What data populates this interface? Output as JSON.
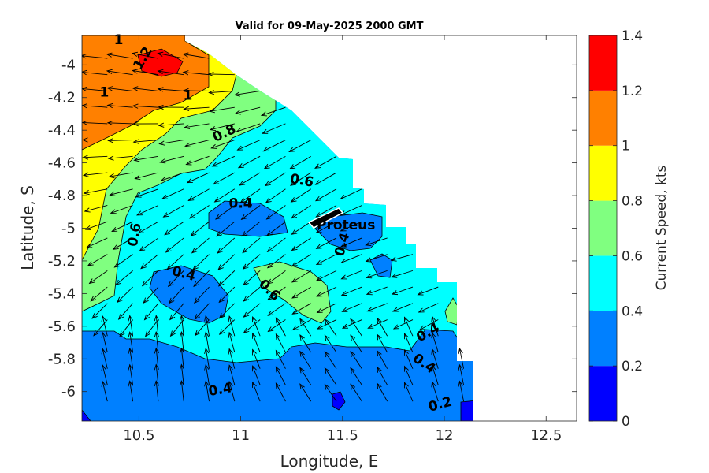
{
  "chart_data": {
    "type": "contour",
    "title": "Valid for 09-May-2025 2000 GMT",
    "xlabel": "Longitude, E",
    "ylabel": "Latitude, S",
    "xlim": [
      10.22,
      12.65
    ],
    "ylim": [
      -6.18,
      -3.82
    ],
    "xticks": [
      10.5,
      11,
      11.5,
      12,
      12.5
    ],
    "xtick_labels": [
      "10.5",
      "11",
      "11.5",
      "12",
      "12.5"
    ],
    "yticks": [
      -4,
      -4.2,
      -4.4,
      -4.6,
      -4.8,
      -5,
      -5.2,
      -5.4,
      -5.6,
      -5.8,
      -6
    ],
    "ytick_labels": [
      "-4",
      "-4.2",
      "-4.4",
      "-4.6",
      "-4.8",
      "-5",
      "-5.2",
      "-5.4",
      "-5.6",
      "-5.8",
      "-6"
    ],
    "colorbar": {
      "label": "Current Speed, kts",
      "levels": [
        0,
        0.2,
        0.4,
        0.6,
        0.8,
        1,
        1.2,
        1.4
      ],
      "tick_labels": [
        "0",
        "0.2",
        "0.4",
        "0.6",
        "0.8",
        "1",
        "1.2",
        "1.4"
      ],
      "colors": [
        "#0000ff",
        "#0080ff",
        "#00ffff",
        "#80ff80",
        "#ffff00",
        "#ff8000",
        "#ff0000"
      ]
    },
    "contour_labels": [
      {
        "text": "1",
        "lon": 10.4,
        "lat": -3.85,
        "angle": 0
      },
      {
        "text": "1.2",
        "lon": 10.52,
        "lat": -3.96,
        "angle": -60
      },
      {
        "text": "1",
        "lon": 10.33,
        "lat": -4.17,
        "angle": 0
      },
      {
        "text": "1",
        "lon": 10.74,
        "lat": -4.19,
        "angle": 0
      },
      {
        "text": "0.8",
        "lon": 10.92,
        "lat": -4.42,
        "angle": -25
      },
      {
        "text": "0.6",
        "lon": 11.3,
        "lat": -4.71,
        "angle": 10
      },
      {
        "text": "0.4",
        "lon": 11.0,
        "lat": -4.85,
        "angle": 0
      },
      {
        "text": "0.6",
        "lon": 10.48,
        "lat": -5.04,
        "angle": -80
      },
      {
        "text": "0.4",
        "lon": 11.5,
        "lat": -5.1,
        "angle": -75
      },
      {
        "text": "0.4",
        "lon": 10.72,
        "lat": -5.28,
        "angle": 15
      },
      {
        "text": "0.6",
        "lon": 11.14,
        "lat": -5.38,
        "angle": 45
      },
      {
        "text": "0.4",
        "lon": 11.92,
        "lat": -5.64,
        "angle": -30
      },
      {
        "text": "0.4",
        "lon": 11.9,
        "lat": -5.83,
        "angle": 35
      },
      {
        "text": "0.4",
        "lon": 10.9,
        "lat": -5.99,
        "angle": -10
      },
      {
        "text": "0.2",
        "lon": 11.98,
        "lat": -6.08,
        "angle": -15
      }
    ],
    "station": {
      "name": "Proteus",
      "lon": 11.42,
      "lat": -4.95
    },
    "arrow_field": {
      "lon_start": 10.22,
      "lon_step": 0.125,
      "lon_count": 16,
      "lat_start": -3.96,
      "lat_step": -0.1,
      "lat_count": 22,
      "dominant_direction": "flow toward west / north-west"
    }
  }
}
